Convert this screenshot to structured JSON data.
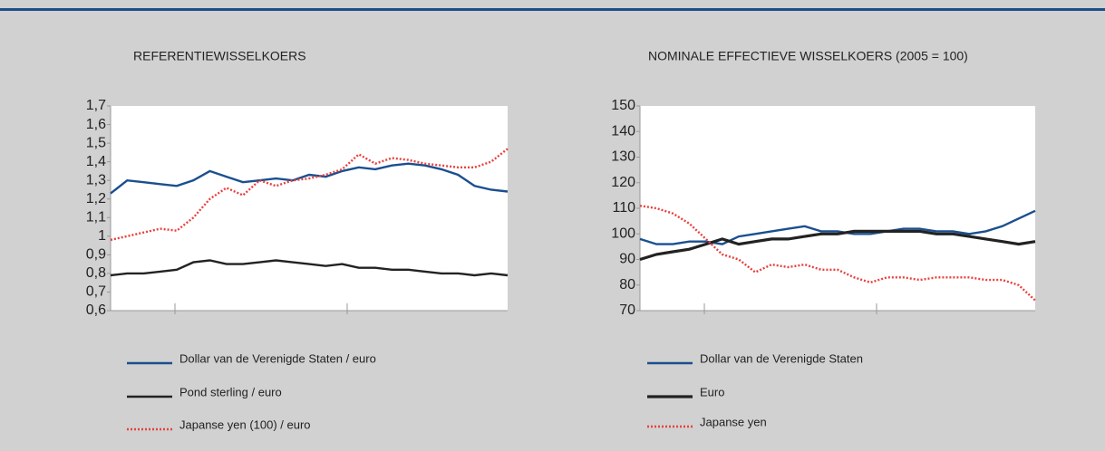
{
  "chart_data": [
    {
      "type": "line",
      "title": "REFERENTIEWISSELKOERS",
      "ylim": [
        0.6,
        1.7
      ],
      "yticks": [
        {
          "value": 0.6,
          "label": "0,6"
        },
        {
          "value": 0.7,
          "label": "0,7"
        },
        {
          "value": 0.8,
          "label": "0,8"
        },
        {
          "value": 0.9,
          "label": "0,9"
        },
        1,
        {
          "value": 1.1,
          "label": "1,1"
        },
        {
          "value": 1.2,
          "label": "1,2"
        },
        {
          "value": 1.3,
          "label": "1,3"
        },
        {
          "value": 1.4,
          "label": "1,4"
        },
        {
          "value": 1.5,
          "label": "1,5"
        },
        {
          "value": 1.6,
          "label": "1,6"
        },
        {
          "value": 1.7,
          "label": "1,7"
        }
      ],
      "series": [
        {
          "name": "Dollar van de Verenigde Staten / euro",
          "color": "#1a4f8f",
          "style": "solid",
          "values": [
            1.23,
            1.3,
            1.29,
            1.28,
            1.27,
            1.3,
            1.35,
            1.32,
            1.29,
            1.3,
            1.31,
            1.3,
            1.33,
            1.32,
            1.35,
            1.37,
            1.36,
            1.38,
            1.39,
            1.38,
            1.36,
            1.33,
            1.27,
            1.25,
            1.24
          ]
        },
        {
          "name": "Pond sterling / euro",
          "color": "#222222",
          "style": "solid",
          "values": [
            0.79,
            0.8,
            0.8,
            0.81,
            0.82,
            0.86,
            0.87,
            0.85,
            0.85,
            0.86,
            0.87,
            0.86,
            0.85,
            0.84,
            0.85,
            0.83,
            0.83,
            0.82,
            0.82,
            0.81,
            0.8,
            0.8,
            0.79,
            0.8,
            0.79
          ]
        },
        {
          "name": "Japanse yen (100) / euro",
          "color": "#e8403e",
          "style": "dotted",
          "values": [
            0.98,
            1.0,
            1.02,
            1.04,
            1.03,
            1.1,
            1.2,
            1.26,
            1.22,
            1.3,
            1.27,
            1.3,
            1.31,
            1.33,
            1.36,
            1.44,
            1.39,
            1.42,
            1.41,
            1.39,
            1.38,
            1.37,
            1.37,
            1.4,
            1.47
          ]
        }
      ]
    },
    {
      "type": "line",
      "title": "NOMINALE EFFECTIEVE WISSELKOERS (2005 = 100)",
      "ylim": [
        70,
        150
      ],
      "yticks": [
        70,
        80,
        90,
        100,
        110,
        120,
        130,
        140,
        150
      ],
      "series": [
        {
          "name": "Dollar van de Verenigde Staten",
          "color": "#1a4f8f",
          "style": "solid",
          "values": [
            98,
            96,
            96,
            97,
            97,
            96,
            99,
            100,
            101,
            102,
            103,
            101,
            101,
            100,
            100,
            101,
            102,
            102,
            101,
            101,
            100,
            101,
            103,
            106,
            109
          ]
        },
        {
          "name": "Euro",
          "color": "#222222",
          "style": "thick",
          "values": [
            90,
            92,
            93,
            94,
            96,
            98,
            96,
            97,
            98,
            98,
            99,
            100,
            100,
            101,
            101,
            101,
            101,
            101,
            100,
            100,
            99,
            98,
            97,
            96,
            97
          ]
        },
        {
          "name": "Japanse yen",
          "color": "#e8403e",
          "style": "dotted",
          "values": [
            111,
            110,
            108,
            104,
            98,
            92,
            90,
            85,
            88,
            87,
            88,
            86,
            86,
            83,
            81,
            83,
            83,
            82,
            83,
            83,
            83,
            82,
            82,
            80,
            74
          ]
        }
      ]
    }
  ]
}
